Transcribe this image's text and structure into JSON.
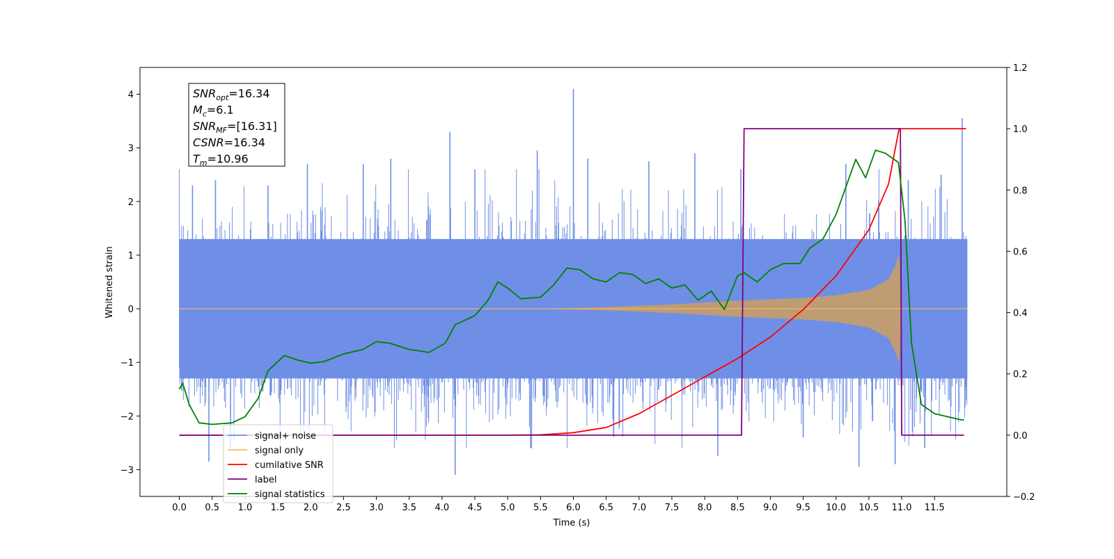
{
  "chart_data": {
    "type": "line",
    "xlabel": "Time (s)",
    "ylabel": "Whitened strain",
    "xlim": [
      -0.6,
      12.6
    ],
    "ylim": [
      -3.5,
      4.5
    ],
    "ylim_right": [
      -0.2,
      1.2
    ],
    "x_ticks": [
      "0.0",
      "0.5",
      "1.0",
      "1.5",
      "2.0",
      "2.5",
      "3.0",
      "3.5",
      "4.0",
      "4.5",
      "5.0",
      "5.5",
      "6.0",
      "6.5",
      "7.0",
      "7.5",
      "8.0",
      "8.5",
      "9.0",
      "9.5",
      "10.0",
      "10.5",
      "11.0",
      "11.5"
    ],
    "y_ticks": [
      "−3",
      "−2",
      "−1",
      "0",
      "1",
      "2",
      "3",
      "4"
    ],
    "y_ticks_right": [
      "−0.2",
      "0.0",
      "0.2",
      "0.4",
      "0.6",
      "0.8",
      "1.0",
      "1.2"
    ],
    "grid": false,
    "legend_position": "bottom-left",
    "annotation": {
      "lines": [
        {
          "base": "SNR",
          "sub": "opt",
          "rest": "=16.34"
        },
        {
          "base": "M",
          "sub": "c",
          "rest": "=6.1"
        },
        {
          "base": "SNR",
          "sub": "MF",
          "rest": "=[16.31]"
        },
        {
          "base": "CSNR",
          "sub": "",
          "rest": "=16.34"
        },
        {
          "base": "T",
          "sub": "m",
          "rest": "=10.96"
        }
      ]
    },
    "colors": {
      "signal_noise": "#6f8fe6",
      "signal_only": "#f5b968",
      "cumulative_snr": "#ff0000",
      "label": "#800080",
      "signal_statistics": "#008000"
    },
    "series": [
      {
        "name": "signal+ noise",
        "axis": "left",
        "description": "whitened strain noise band, roughly +/-1.3 with spikes to about 4.1",
        "envelope": {
          "x": [
            0,
            12
          ],
          "low": -1.3,
          "high": 1.3
        },
        "spikes_x": [
          0.2,
          0.45,
          0.55,
          0.78,
          1.35,
          1.95,
          2.8,
          3.22,
          4.12,
          4.2,
          4.5,
          5.35,
          5.45,
          6.0,
          6.22,
          7.15,
          7.85,
          8.2,
          8.55,
          9.5,
          10.15,
          10.35,
          10.9,
          11.1,
          11.35,
          11.6,
          11.92
        ],
        "spikes_y": [
          2.3,
          -2.85,
          2.4,
          -2.6,
          2.3,
          2.7,
          2.7,
          2.8,
          3.3,
          -3.1,
          2.6,
          -2.6,
          2.95,
          4.1,
          2.8,
          2.75,
          2.9,
          -2.75,
          2.6,
          -2.4,
          2.7,
          -2.95,
          -2.9,
          2.4,
          -2.6,
          2.5,
          3.55
        ]
      },
      {
        "name": "signal only",
        "axis": "left",
        "description": "chirp signal growing from 0 to about 1.0 amplitude near 10.96 s",
        "x": [
          0,
          5.5,
          6.5,
          7.5,
          8.5,
          9.5,
          10.0,
          10.5,
          10.8,
          10.9,
          10.96,
          11.0,
          12.0
        ],
        "amp": [
          0,
          0,
          0.03,
          0.08,
          0.15,
          0.2,
          0.25,
          0.35,
          0.55,
          0.8,
          1.0,
          0,
          0
        ]
      },
      {
        "name": "cumilative SNR",
        "axis": "right",
        "x": [
          0,
          5.0,
          5.5,
          6.0,
          6.5,
          7.0,
          7.5,
          8.0,
          8.5,
          9.0,
          9.5,
          10.0,
          10.5,
          10.8,
          10.96,
          11.0,
          11.5,
          11.98
        ],
        "y": [
          0,
          0,
          0.001,
          0.008,
          0.025,
          0.07,
          0.13,
          0.19,
          0.25,
          0.32,
          0.41,
          0.52,
          0.67,
          0.82,
          1.0,
          1.0,
          1.0,
          1.0
        ]
      },
      {
        "name": "label",
        "axis": "right",
        "x": [
          0,
          8.56,
          8.6,
          10.95,
          10.98,
          11.0,
          11.95
        ],
        "y": [
          0,
          0,
          1,
          1,
          1,
          0,
          0
        ]
      },
      {
        "name": "signal statistics",
        "axis": "right",
        "x": [
          0.0,
          0.05,
          0.15,
          0.3,
          0.5,
          0.8,
          1.0,
          1.2,
          1.35,
          1.6,
          1.8,
          2.0,
          2.2,
          2.5,
          2.8,
          3.0,
          3.2,
          3.5,
          3.8,
          4.05,
          4.2,
          4.5,
          4.7,
          4.85,
          5.0,
          5.2,
          5.5,
          5.7,
          5.9,
          6.1,
          6.3,
          6.5,
          6.7,
          6.9,
          7.1,
          7.3,
          7.5,
          7.7,
          7.9,
          8.1,
          8.3,
          8.5,
          8.6,
          8.8,
          9.0,
          9.2,
          9.45,
          9.6,
          9.8,
          10.0,
          10.15,
          10.3,
          10.45,
          10.6,
          10.75,
          10.95,
          11.05,
          11.15,
          11.3,
          11.5,
          11.7,
          11.9,
          11.95
        ],
        "y": [
          0.15,
          0.17,
          0.1,
          0.04,
          0.035,
          0.04,
          0.06,
          0.12,
          0.21,
          0.26,
          0.245,
          0.235,
          0.24,
          0.265,
          0.28,
          0.305,
          0.3,
          0.28,
          0.27,
          0.3,
          0.36,
          0.39,
          0.44,
          0.5,
          0.48,
          0.445,
          0.45,
          0.49,
          0.545,
          0.54,
          0.51,
          0.5,
          0.53,
          0.525,
          0.495,
          0.51,
          0.48,
          0.49,
          0.44,
          0.47,
          0.41,
          0.52,
          0.53,
          0.5,
          0.54,
          0.56,
          0.56,
          0.61,
          0.64,
          0.72,
          0.81,
          0.9,
          0.84,
          0.93,
          0.92,
          0.89,
          0.7,
          0.3,
          0.1,
          0.07,
          0.06,
          0.05,
          0.05
        ]
      }
    ]
  },
  "legend": [
    {
      "label": "signal+ noise",
      "color": "#6f8fe6"
    },
    {
      "label": "signal only",
      "color": "#f5b968"
    },
    {
      "label": "cumilative SNR",
      "color": "#ff0000"
    },
    {
      "label": "label",
      "color": "#800080"
    },
    {
      "label": "signal statistics",
      "color": "#008000"
    }
  ]
}
